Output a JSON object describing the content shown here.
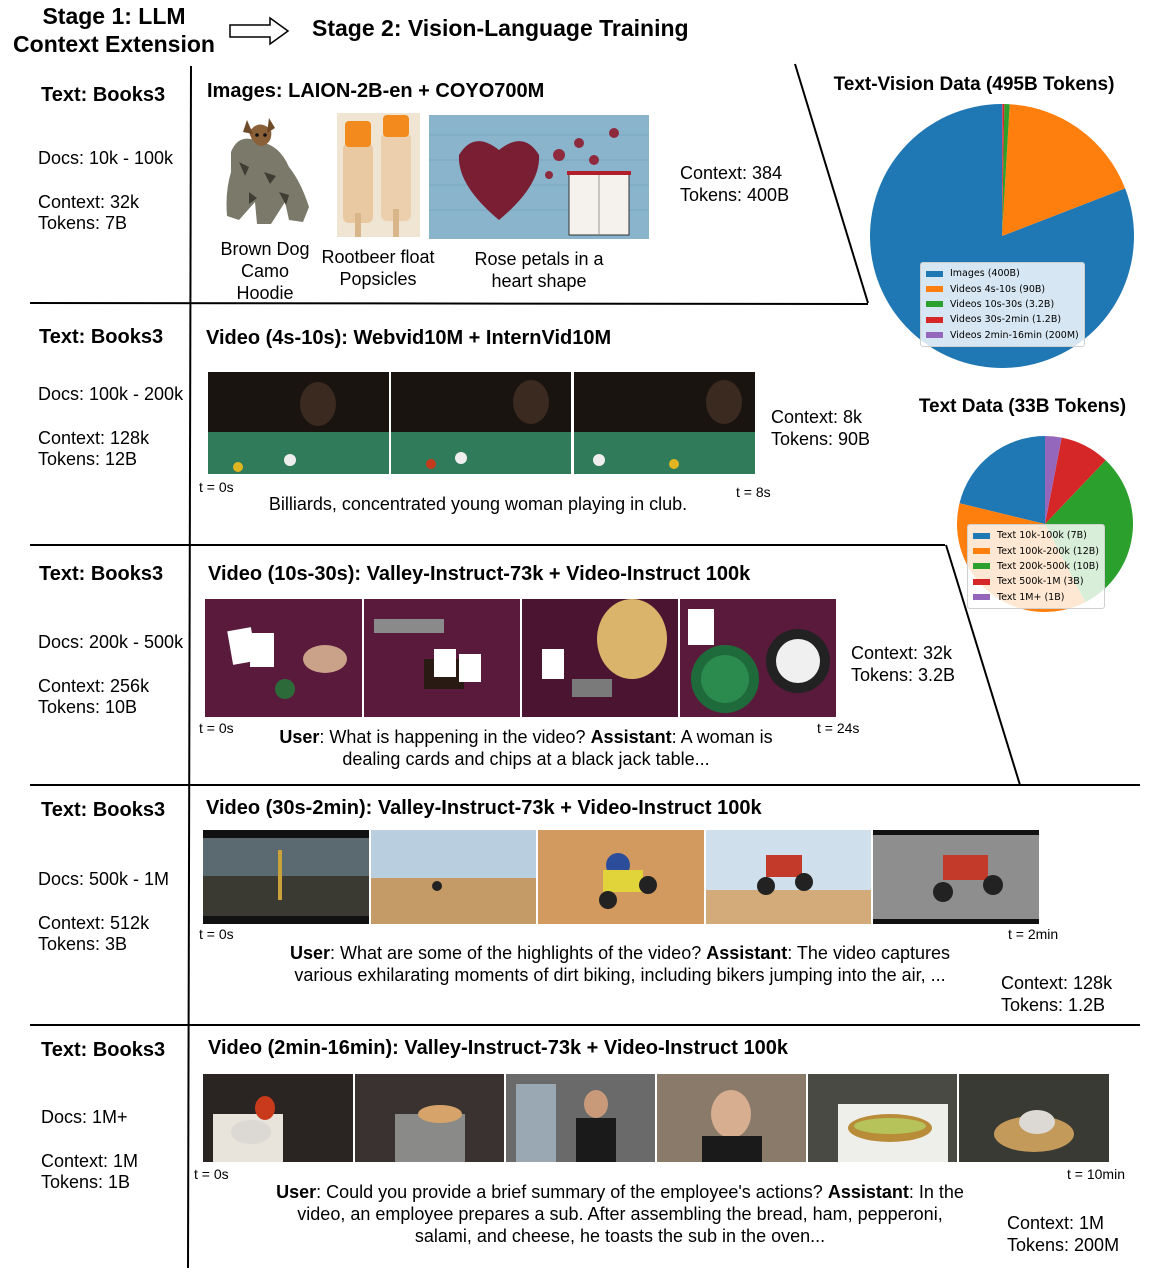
{
  "header": {
    "stage1_title": "Stage 1: LLM\nContext Extension",
    "stage2_title": "Stage 2: Vision-Language Training"
  },
  "rows": [
    {
      "text_label": "Text: Books3",
      "docs": "Docs: 10k - 100k",
      "context_tokens": "Context: 32k\nTokens: 7B",
      "section_title": "Images: LAION-2B-en + COYO700M",
      "vl_context_tokens": "Context: 384\nTokens: 400B",
      "image_captions": [
        "Brown Dog\nCamo\nHoodie",
        "Rootbeer float\nPopsicles",
        "Rose petals in a\nheart shape"
      ]
    },
    {
      "text_label": "Text: Books3",
      "docs": "Docs: 100k - 200k",
      "context_tokens": "Context: 128k\nTokens: 12B",
      "section_title": "Video (4s-10s): Webvid10M + InternVid10M",
      "vl_context_tokens": "Context: 8k\nTokens: 90B",
      "t_start": "t = 0s",
      "t_end": "t = 8s",
      "caption": "Billiards, concentrated young woman playing in club."
    },
    {
      "text_label": "Text: Books3",
      "docs": "Docs: 200k - 500k",
      "context_tokens": "Context: 256k\nTokens: 10B",
      "section_title": "Video (10s-30s): Valley-Instruct-73k + Video-Instruct 100k",
      "vl_context_tokens": "Context: 32k\nTokens: 3.2B",
      "t_start": "t = 0s",
      "t_end": "t = 24s",
      "user_label": "User",
      "user_text": ": What is happening in the video? ",
      "assistant_label": "Assistant",
      "assistant_text": ": A woman is dealing cards and chips at a black jack table..."
    },
    {
      "text_label": "Text: Books3",
      "docs": "Docs: 500k - 1M",
      "context_tokens": "Context: 512k\nTokens: 3B",
      "section_title": "Video (30s-2min): Valley-Instruct-73k + Video-Instruct 100k",
      "vl_context_tokens": "Context: 128k\nTokens: 1.2B",
      "t_start": "t = 0s",
      "t_end": "t = 2min",
      "user_label": "User",
      "user_text": ": What are some of the highlights of the video? ",
      "assistant_label": "Assistant",
      "assistant_text": ": The video captures various exhilarating moments of dirt biking, including bikers jumping into the air, ..."
    },
    {
      "text_label": "Text: Books3",
      "docs": "Docs: 1M+",
      "context_tokens": "Context: 1M\nTokens: 1B",
      "section_title": "Video (2min-16min): Valley-Instruct-73k + Video-Instruct 100k",
      "vl_context_tokens": "Context: 1M\nTokens: 200M",
      "t_start": "t = 0s",
      "t_end": "t = 10min",
      "user_label": "User",
      "user_text": ": Could you provide a brief summary of the employee's actions? ",
      "assistant_label": "Assistant",
      "assistant_text": ": In the video, an employee prepares a sub. After assembling the bread, ham, pepperoni, salami, and cheese, he toasts the sub in the oven..."
    }
  ],
  "chart_data": [
    {
      "type": "pie",
      "title": "Text-Vision Data (495B  Tokens)",
      "categories": [
        "Images (400B)",
        "Videos 4s-10s (90B)",
        "Videos 10s-30s (3.2B)",
        "Videos 30s-2min (1.2B)",
        "Videos 2min-16min (200M)"
      ],
      "values": [
        400,
        90,
        3.2,
        1.2,
        0.2
      ],
      "colors": [
        "#1f77b4",
        "#ff7f0e",
        "#2ca02c",
        "#d62728",
        "#9467bd"
      ],
      "legend": "bottom"
    },
    {
      "type": "pie",
      "title": "Text Data (33B  Tokens)",
      "categories": [
        "Text 10k-100k (7B)",
        "Text 100k-200k (12B)",
        "Text 200k-500k (10B)",
        "Text 500k-1M (3B)",
        "Text 1M+ (1B)"
      ],
      "values": [
        7,
        12,
        10,
        3,
        1
      ],
      "colors": [
        "#1f77b4",
        "#ff7f0e",
        "#2ca02c",
        "#d62728",
        "#9467bd"
      ],
      "legend": "center"
    }
  ]
}
